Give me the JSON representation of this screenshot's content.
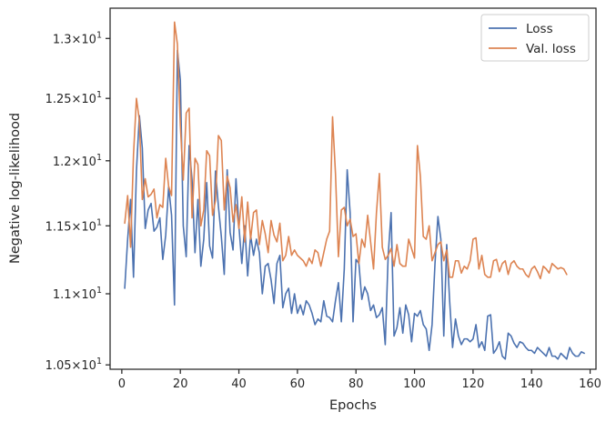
{
  "chart_data": {
    "type": "line",
    "title": "",
    "xlabel": "Epochs",
    "ylabel": "Negative log-likelihood",
    "xlim": [
      -4,
      162
    ],
    "ylim": [
      10.47,
      13.26
    ],
    "y_scale": "log",
    "grid": false,
    "legend_position": "top-right",
    "x_ticks": [
      {
        "value": 0,
        "label": "0"
      },
      {
        "value": 20,
        "label": "20"
      },
      {
        "value": 40,
        "label": "40"
      },
      {
        "value": 60,
        "label": "60"
      },
      {
        "value": 80,
        "label": "80"
      },
      {
        "value": 100,
        "label": "100"
      },
      {
        "value": 120,
        "label": "120"
      },
      {
        "value": 140,
        "label": "140"
      },
      {
        "value": 160,
        "label": "160"
      }
    ],
    "y_ticks": [
      {
        "value": 10.5,
        "base": "1.05",
        "exp": "1"
      },
      {
        "value": 11.0,
        "base": "1.1",
        "exp": "1"
      },
      {
        "value": 11.5,
        "base": "1.15",
        "exp": "1"
      },
      {
        "value": 12.0,
        "base": "1.2",
        "exp": "1"
      },
      {
        "value": 12.5,
        "base": "1.25",
        "exp": "1"
      },
      {
        "value": 13.0,
        "base": "1.3",
        "exp": "1"
      }
    ],
    "series": [
      {
        "name": "Loss",
        "color": "#4c72b0",
        "x_start": 1,
        "values": [
          11.04,
          11.4,
          11.7,
          11.12,
          11.92,
          12.36,
          12.1,
          11.48,
          11.62,
          11.67,
          11.46,
          11.49,
          11.56,
          11.25,
          11.43,
          11.8,
          11.58,
          10.92,
          12.9,
          12.65,
          11.5,
          11.27,
          12.12,
          11.85,
          11.3,
          11.7,
          11.2,
          11.4,
          11.83,
          11.35,
          11.26,
          11.92,
          11.65,
          11.42,
          11.14,
          11.93,
          11.45,
          11.32,
          11.86,
          11.5,
          11.22,
          11.5,
          11.13,
          11.43,
          11.28,
          11.4,
          11.3,
          11.0,
          11.2,
          11.22,
          11.1,
          10.93,
          11.22,
          11.28,
          10.9,
          11.0,
          11.04,
          10.86,
          11.0,
          10.86,
          10.92,
          10.85,
          10.95,
          10.92,
          10.86,
          10.78,
          10.82,
          10.8,
          10.95,
          10.84,
          10.83,
          10.8,
          10.95,
          11.08,
          10.8,
          11.18,
          11.93,
          11.6,
          10.8,
          11.25,
          11.22,
          10.96,
          11.05,
          11.0,
          10.88,
          10.92,
          10.83,
          10.85,
          10.9,
          10.64,
          11.28,
          11.6,
          10.7,
          10.76,
          10.9,
          10.72,
          10.92,
          10.85,
          10.66,
          10.86,
          10.84,
          10.88,
          10.78,
          10.75,
          10.6,
          10.78,
          11.22,
          11.57,
          11.4,
          10.7,
          11.36,
          10.95,
          10.62,
          10.82,
          10.7,
          10.64,
          10.68,
          10.68,
          10.66,
          10.68,
          10.78,
          10.62,
          10.66,
          10.6,
          10.84,
          10.85,
          10.58,
          10.61,
          10.66,
          10.56,
          10.54,
          10.72,
          10.7,
          10.65,
          10.62,
          10.66,
          10.65,
          10.62,
          10.6,
          10.6,
          10.58,
          10.62,
          10.6,
          10.58,
          10.56,
          10.62,
          10.56,
          10.56,
          10.54,
          10.58,
          10.56,
          10.54,
          10.62,
          10.58,
          10.56,
          10.56,
          10.59,
          10.58
        ]
      },
      {
        "name": "Val. loss",
        "color": "#dd8452",
        "x_start": 1,
        "values": [
          11.52,
          11.73,
          11.34,
          12.05,
          12.5,
          12.32,
          11.7,
          11.86,
          11.72,
          11.74,
          11.78,
          11.56,
          11.66,
          11.64,
          12.02,
          11.8,
          11.73,
          13.14,
          12.95,
          12.28,
          11.85,
          12.38,
          12.42,
          11.56,
          12.02,
          11.97,
          11.5,
          11.62,
          12.08,
          12.04,
          11.58,
          11.69,
          12.2,
          12.16,
          11.62,
          11.88,
          11.79,
          11.53,
          11.66,
          11.48,
          11.72,
          11.38,
          11.68,
          11.4,
          11.6,
          11.62,
          11.36,
          11.54,
          11.44,
          11.3,
          11.54,
          11.43,
          11.38,
          11.52,
          11.24,
          11.28,
          11.42,
          11.28,
          11.32,
          11.28,
          11.26,
          11.24,
          11.2,
          11.26,
          11.22,
          11.32,
          11.3,
          11.2,
          11.3,
          11.4,
          11.46,
          12.35,
          11.9,
          11.27,
          11.62,
          11.64,
          11.5,
          11.55,
          11.42,
          11.44,
          11.22,
          11.4,
          11.34,
          11.58,
          11.38,
          11.18,
          11.6,
          11.9,
          11.34,
          11.25,
          11.28,
          11.33,
          11.2,
          11.36,
          11.22,
          11.2,
          11.2,
          11.4,
          11.33,
          11.26,
          12.12,
          11.88,
          11.42,
          11.4,
          11.5,
          11.24,
          11.3,
          11.36,
          11.38,
          11.24,
          11.32,
          11.12,
          11.12,
          11.24,
          11.24,
          11.15,
          11.2,
          11.18,
          11.24,
          11.4,
          11.41,
          11.18,
          11.28,
          11.14,
          11.12,
          11.12,
          11.24,
          11.25,
          11.16,
          11.22,
          11.24,
          11.14,
          11.22,
          11.24,
          11.2,
          11.18,
          11.18,
          11.14,
          11.12,
          11.18,
          11.2,
          11.16,
          11.11,
          11.2,
          11.18,
          11.15,
          11.22,
          11.2,
          11.18,
          11.19,
          11.18,
          11.14
        ]
      }
    ]
  }
}
